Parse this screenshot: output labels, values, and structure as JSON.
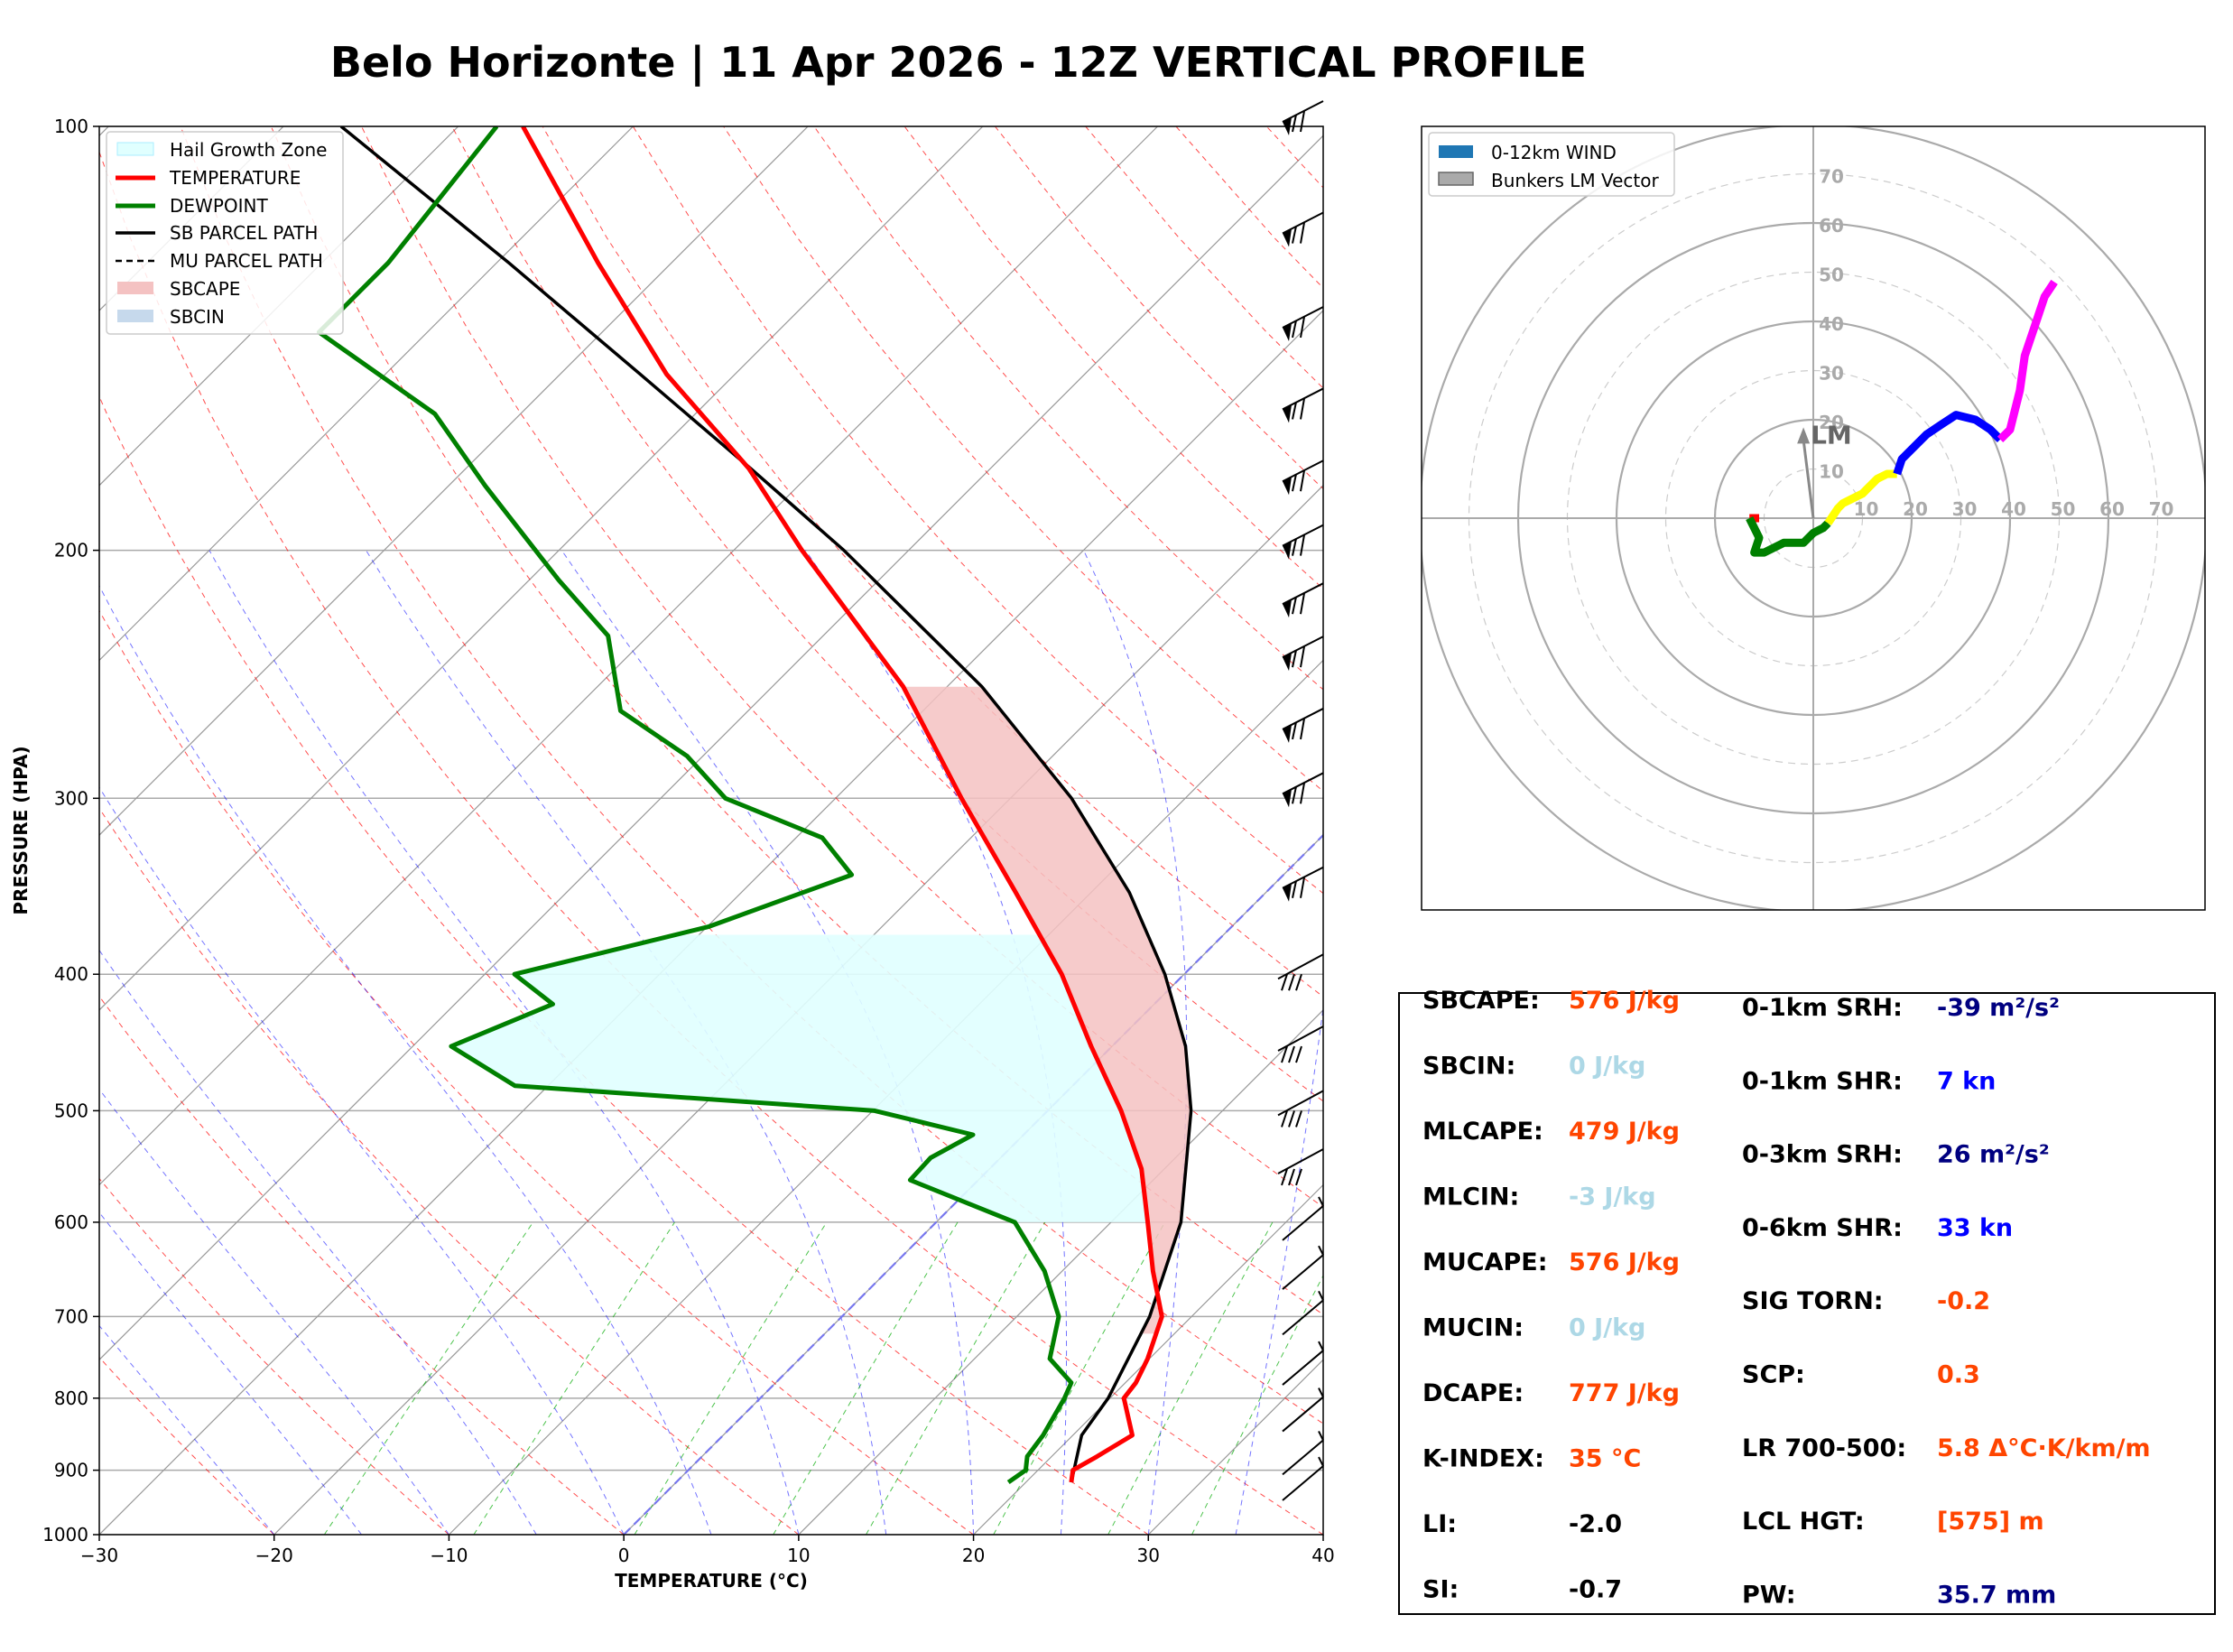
{
  "title": "Belo Horizonte | 11 Apr 2026 - 12Z VERTICAL PROFILE",
  "colors": {
    "temperature": "#ff0000",
    "dewpoint": "#008000",
    "parcel": "#000000",
    "sbcape": "#f4c2c2",
    "hail": "#e0ffff",
    "value_orange": "#ff4500",
    "value_lightblue": "#add8e6",
    "value_navy": "#000080",
    "value_blue": "#0000ff",
    "value_black": "#000000"
  },
  "chart_data": [
    {
      "type": "line",
      "subtype": "skew-t log-p",
      "xlabel": "TEMPERATURE (°C)",
      "ylabel": "PRESSURE (HPA)",
      "xlim": [
        -30,
        40
      ],
      "ylim": [
        1000,
        100
      ],
      "xticks": [
        "−30",
        "−20",
        "−10",
        "0",
        "10",
        "20",
        "30",
        "40"
      ],
      "yticks": [
        "100",
        "200",
        "300",
        "400",
        "500",
        "600",
        "700",
        "800",
        "900",
        "1000"
      ],
      "legend": [
        {
          "label": "Hail Growth Zone",
          "key": "hail"
        },
        {
          "label": "TEMPERATURE",
          "key": "temp"
        },
        {
          "label": "DEWPOINT",
          "key": "dew"
        },
        {
          "label": "SB PARCEL PATH",
          "key": "sb"
        },
        {
          "label": "MU PARCEL PATH",
          "key": "mu"
        },
        {
          "label": "SBCAPE",
          "key": "cape"
        },
        {
          "label": "SBCIN",
          "key": "cin"
        }
      ],
      "series": [
        {
          "name": "TEMPERATURE",
          "points": [
            [
              918,
              22.6
            ],
            [
              900,
              22.0
            ],
            [
              880,
              22.6
            ],
            [
              850,
              23.4
            ],
            [
              800,
              20.8
            ],
            [
              780,
              20.6
            ],
            [
              750,
              19.9
            ],
            [
              700,
              18.3
            ],
            [
              650,
              15.2
            ],
            [
              600,
              12.1
            ],
            [
              550,
              8.7
            ],
            [
              500,
              4.2
            ],
            [
              450,
              -1.2
            ],
            [
              400,
              -7.0
            ],
            [
              350,
              -14.3
            ],
            [
              300,
              -22.8
            ],
            [
              250,
              -32.5
            ],
            [
              200,
              -46.1
            ],
            [
              175,
              -53.8
            ],
            [
              150,
              -63.9
            ],
            [
              125,
              -74.2
            ],
            [
              100,
              -86.3
            ]
          ]
        },
        {
          "name": "DEWPOINT",
          "points": [
            [
              918,
              19.0
            ],
            [
              900,
              19.3
            ],
            [
              880,
              18.6
            ],
            [
              850,
              18.3
            ],
            [
              800,
              17.4
            ],
            [
              780,
              16.9
            ],
            [
              750,
              14.3
            ],
            [
              700,
              12.4
            ],
            [
              650,
              9.0
            ],
            [
              600,
              4.5
            ],
            [
              560,
              -3.9
            ],
            [
              540,
              -4.0
            ],
            [
              520,
              -2.9
            ],
            [
              500,
              -9.9
            ],
            [
              480,
              -31.9
            ],
            [
              450,
              -37.8
            ],
            [
              420,
              -34.4
            ],
            [
              400,
              -38.3
            ],
            [
              370,
              -29.9
            ],
            [
              340,
              -24.7
            ],
            [
              320,
              -28.5
            ],
            [
              300,
              -36.3
            ],
            [
              280,
              -40.9
            ],
            [
              260,
              -47.3
            ],
            [
              230,
              -52.3
            ],
            [
              210,
              -58.3
            ],
            [
              180,
              -67.9
            ],
            [
              160,
              -74.9
            ],
            [
              140,
              -86.2
            ],
            [
              125,
              -86.2
            ],
            [
              100,
              -87.8
            ]
          ]
        },
        {
          "name": "SB PARCEL PATH",
          "points": [
            [
              918,
              22.6
            ],
            [
              850,
              20.5
            ],
            [
              800,
              19.9
            ],
            [
              700,
              17.6
            ],
            [
              600,
              14.0
            ],
            [
              500,
              8.2
            ],
            [
              450,
              4.2
            ],
            [
              400,
              -1.1
            ],
            [
              350,
              -7.8
            ],
            [
              300,
              -16.5
            ],
            [
              250,
              -28.0
            ],
            [
              200,
              -43.7
            ],
            [
              175,
              -53.7
            ],
            [
              150,
              -65.4
            ],
            [
              125,
              -79.3
            ],
            [
              100,
              -96.7
            ]
          ]
        }
      ],
      "wind_barbs": [
        {
          "p": 918,
          "speed": "light"
        },
        {
          "p": 880,
          "speed": "light"
        },
        {
          "p": 820,
          "speed": "light"
        },
        {
          "p": 760,
          "speed": "light"
        },
        {
          "p": 700,
          "speed": "light"
        },
        {
          "p": 650,
          "speed": "light"
        },
        {
          "p": 600,
          "speed": "light"
        },
        {
          "p": 550,
          "speed": "moderate"
        },
        {
          "p": 500,
          "speed": "moderate"
        },
        {
          "p": 450,
          "speed": "moderate"
        },
        {
          "p": 400,
          "speed": "moderate"
        },
        {
          "p": 350,
          "speed": "strong"
        },
        {
          "p": 300,
          "speed": "strong"
        },
        {
          "p": 270,
          "speed": "strong"
        },
        {
          "p": 240,
          "speed": "strong"
        },
        {
          "p": 220,
          "speed": "strong"
        },
        {
          "p": 200,
          "speed": "strong"
        },
        {
          "p": 180,
          "speed": "strong"
        },
        {
          "p": 160,
          "speed": "strong"
        },
        {
          "p": 140,
          "speed": "strong"
        },
        {
          "p": 120,
          "speed": "strong"
        },
        {
          "p": 100,
          "speed": "strong"
        }
      ]
    },
    {
      "type": "line",
      "subtype": "hodograph",
      "rlim": [
        0,
        80
      ],
      "ring_labels": [
        "10",
        "20",
        "30",
        "40",
        "50",
        "60",
        "70"
      ],
      "legend": [
        {
          "label": "0-12km WIND"
        },
        {
          "label": "Bunkers LM Vector"
        }
      ],
      "lm_label": "LM",
      "lm_vector": [
        -2,
        17
      ],
      "segments": [
        {
          "color": "#ff0000",
          "points": [
            [
              -11,
              0
            ],
            [
              -13,
              0
            ]
          ]
        },
        {
          "color": "#008000",
          "points": [
            [
              -13,
              0
            ],
            [
              -12,
              -2
            ],
            [
              -11,
              -4
            ],
            [
              -12,
              -7
            ],
            [
              -10,
              -7
            ],
            [
              -6,
              -5
            ],
            [
              -2,
              -5
            ],
            [
              0,
              -3
            ],
            [
              2,
              -2
            ],
            [
              3,
              -1
            ]
          ]
        },
        {
          "color": "#ffff00",
          "points": [
            [
              3,
              -1
            ],
            [
              5,
              2
            ],
            [
              6,
              3
            ],
            [
              8,
              4
            ],
            [
              10,
              5
            ],
            [
              11,
              6
            ],
            [
              13,
              8
            ],
            [
              15,
              9
            ],
            [
              17,
              9
            ]
          ]
        },
        {
          "color": "#0000ff",
          "points": [
            [
              17,
              9
            ],
            [
              18,
              12
            ],
            [
              20,
              14
            ],
            [
              23,
              17
            ],
            [
              26,
              19
            ],
            [
              29,
              21
            ],
            [
              33,
              20
            ],
            [
              36,
              18
            ],
            [
              38,
              16
            ]
          ]
        },
        {
          "color": "#ff00ff",
          "points": [
            [
              38,
              16
            ],
            [
              40,
              18
            ],
            [
              42,
              26
            ],
            [
              43,
              33
            ],
            [
              45,
              39
            ],
            [
              47,
              45
            ],
            [
              49,
              48
            ]
          ]
        }
      ]
    }
  ],
  "indices": [
    {
      "label": "SBCAPE:",
      "value": "576 J/kg",
      "color": "#ff4500"
    },
    {
      "label": "SBCIN:",
      "value": "0 J/kg",
      "color": "#add8e6"
    },
    {
      "label": "MLCAPE:",
      "value": "479 J/kg",
      "color": "#ff4500"
    },
    {
      "label": "MLCIN:",
      "value": "-3 J/kg",
      "color": "#add8e6"
    },
    {
      "label": "MUCAPE:",
      "value": "576 J/kg",
      "color": "#ff4500"
    },
    {
      "label": "MUCIN:",
      "value": "0 J/kg",
      "color": "#add8e6"
    },
    {
      "label": "DCAPE:",
      "value": "777 J/kg",
      "color": "#ff4500"
    },
    {
      "label": "K-INDEX:",
      "value": "35 °C",
      "color": "#ff4500"
    },
    {
      "label": "LI:",
      "value": "-2.0",
      "color": "#000000"
    },
    {
      "label": "SI:",
      "value": "-0.7",
      "color": "#000000"
    },
    {
      "label": "0-1km SRH:",
      "value": "-39 m²/s²",
      "color": "#000080"
    },
    {
      "label": "0-1km SHR:",
      "value": "7 kn",
      "color": "#0000ff"
    },
    {
      "label": "0-3km SRH:",
      "value": "26 m²/s²",
      "color": "#000080"
    },
    {
      "label": "0-6km SHR:",
      "value": "33 kn",
      "color": "#0000ff"
    },
    {
      "label": "SIG TORN:",
      "value": "-0.2",
      "color": "#ff4500"
    },
    {
      "label": "SCP:",
      "value": "0.3",
      "color": "#ff4500"
    },
    {
      "label": "LR 700-500:",
      "value": "5.8 Δ°C·K/km/m",
      "color": "#ff4500"
    },
    {
      "label": "LCL HGT:",
      "value": "[575] m",
      "color": "#ff4500"
    },
    {
      "label": "PW:",
      "value": "35.7 mm",
      "color": "#000080"
    }
  ]
}
